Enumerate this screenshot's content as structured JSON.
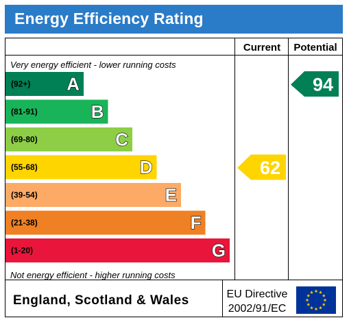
{
  "header": {
    "title": "Energy Efficiency Rating"
  },
  "columns": {
    "current": "Current",
    "potential": "Potential"
  },
  "notes": {
    "top": "Very energy efficient - lower running costs",
    "bottom": "Not energy efficient - higher running costs"
  },
  "footer": {
    "region": "England, Scotland & Wales",
    "directive_line1": "EU Directive",
    "directive_line2": "2002/91/EC"
  },
  "chart_data": {
    "type": "bar",
    "bands": [
      {
        "letter": "A",
        "range": "(92+)",
        "color": "#008054"
      },
      {
        "letter": "B",
        "range": "(81-91)",
        "color": "#19b459"
      },
      {
        "letter": "C",
        "range": "(69-80)",
        "color": "#8dce46"
      },
      {
        "letter": "D",
        "range": "(55-68)",
        "color": "#ffd500"
      },
      {
        "letter": "E",
        "range": "(39-54)",
        "color": "#fcaa65"
      },
      {
        "letter": "F",
        "range": "(21-38)",
        "color": "#ef8023"
      },
      {
        "letter": "G",
        "range": "(1-20)",
        "color": "#e9153b"
      }
    ],
    "current": {
      "value": "62",
      "band": "D",
      "color": "#ffd500"
    },
    "potential": {
      "value": "94",
      "band": "A",
      "color": "#008054"
    }
  }
}
